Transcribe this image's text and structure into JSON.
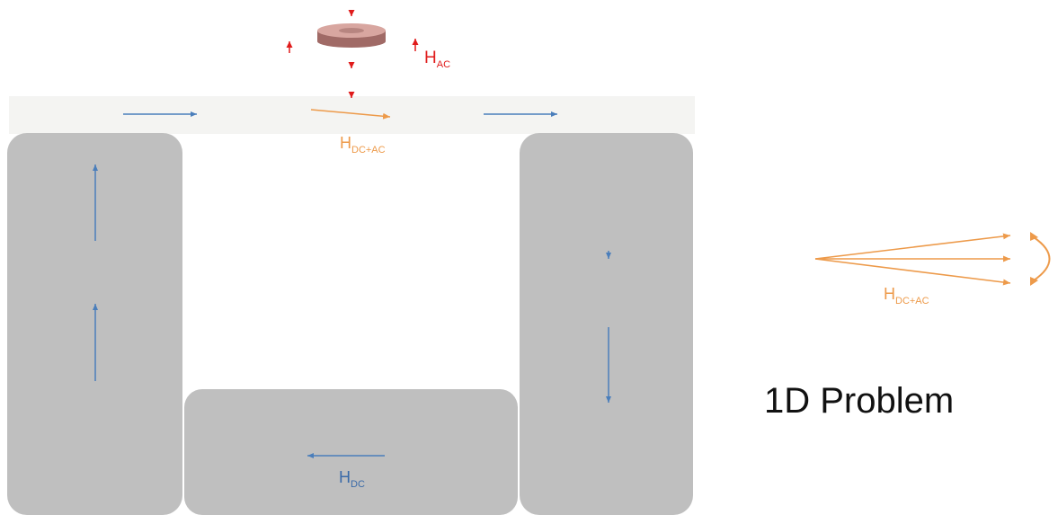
{
  "colors": {
    "background": "#ffffff",
    "core": "#bfbfbf",
    "sample_strip": "#f4f4f2",
    "dc_arrow": "#4a7ebb",
    "combined_arrow": "#ed9a4a",
    "ac_arrow": "#e01b1b",
    "title": "#111111"
  },
  "labels": {
    "h_ac": {
      "main": "H",
      "sub": "AC"
    },
    "h_dc_ac_top": {
      "main": "H",
      "sub": "DC+AC"
    },
    "h_dc_ac_right": {
      "main": "H",
      "sub": "DC+AC"
    },
    "h_dc": {
      "main": "H",
      "sub": "DC"
    }
  },
  "title": "1D Problem"
}
